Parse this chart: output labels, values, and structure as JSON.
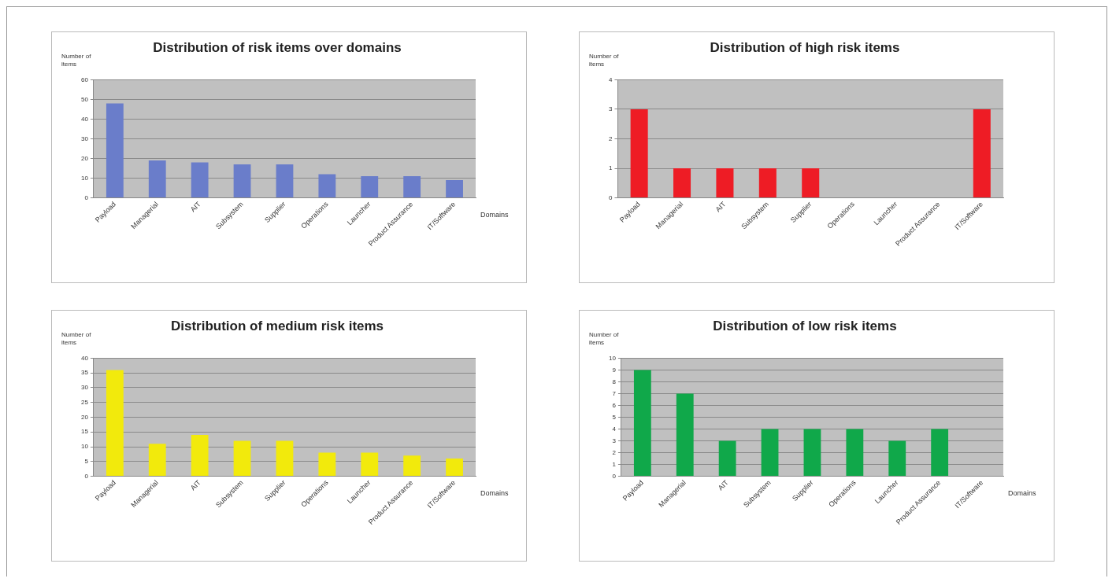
{
  "chart_data": [
    {
      "type": "bar",
      "title": "Distribution of risk items over domains",
      "xlabel": "Domains",
      "ylabel": "Number of items",
      "categories": [
        "Payload",
        "Managerial",
        "AIT",
        "Subsystem",
        "Supplier",
        "Operations",
        "Launcher",
        "Product Assurance",
        "IT/Software"
      ],
      "values": [
        48,
        19,
        18,
        17,
        17,
        12,
        11,
        11,
        9
      ],
      "color": "#6a7dca",
      "ylim": [
        0,
        60
      ],
      "yticks": [
        0,
        10,
        20,
        30,
        40,
        50,
        60
      ],
      "grid": "y",
      "legend": false
    },
    {
      "type": "bar",
      "title": "Distribution of high risk items",
      "ylabel": "Number of items",
      "categories": [
        "Payload",
        "Managerial",
        "AIT",
        "Subsystem",
        "Supplier",
        "Operations",
        "Launcher",
        "Product Assurance",
        "IT/Software"
      ],
      "values": [
        3,
        1,
        1,
        1,
        1,
        0,
        0,
        0,
        3
      ],
      "color": "#ee1c25",
      "ylim": [
        0,
        4
      ],
      "yticks": [
        0,
        1,
        2,
        3,
        4
      ],
      "grid": "y",
      "legend": false
    },
    {
      "type": "bar",
      "title": "Distribution of medium risk items",
      "xlabel": "Domains",
      "ylabel": "Number of items",
      "categories": [
        "Payload",
        "Managerial",
        "AIT",
        "Subsystem",
        "Supplier",
        "Operations",
        "Launcher",
        "Product Assurance",
        "IT/Software"
      ],
      "values": [
        36,
        11,
        14,
        12,
        12,
        8,
        8,
        7,
        6
      ],
      "color": "#f2ea0c",
      "ylim": [
        0,
        40
      ],
      "yticks": [
        0,
        5,
        10,
        15,
        20,
        25,
        30,
        35,
        40
      ],
      "grid": "y",
      "legend": false
    },
    {
      "type": "bar",
      "title": "Distribution of low risk items",
      "xlabel": "Domains",
      "ylabel": "Number of items",
      "categories": [
        "Payload",
        "Managerial",
        "AIT",
        "Subsystem",
        "Supplier",
        "Operations",
        "Launcher",
        "Product Assurance",
        "IT/Software"
      ],
      "values": [
        9,
        7,
        3,
        4,
        4,
        4,
        3,
        4,
        0
      ],
      "color": "#10a84a",
      "ylim": [
        0,
        10
      ],
      "yticks": [
        0,
        1,
        2,
        3,
        4,
        5,
        6,
        7,
        8,
        9,
        10
      ],
      "grid": "y",
      "legend": false
    }
  ]
}
